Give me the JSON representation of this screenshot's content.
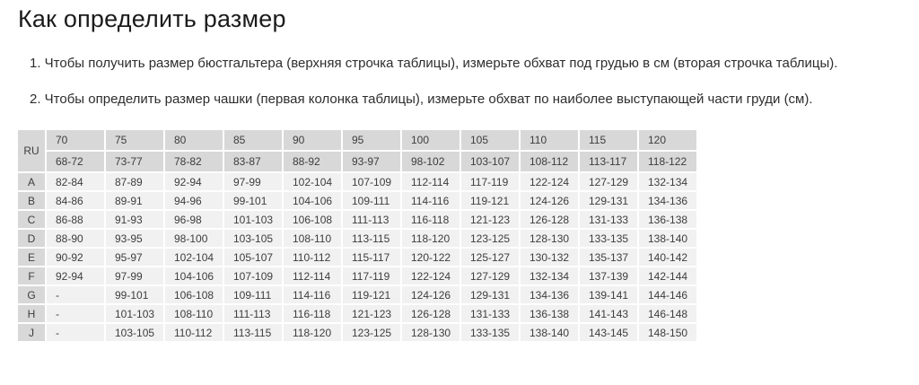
{
  "page": {
    "title": "Как определить размер",
    "instructions": [
      "1. Чтобы получить размер бюстгальтера (верхняя строчка таблицы), измерьте обхват под грудью в см (вторая строчка таблицы).",
      "2. Чтобы определить размер чашки (первая колонка таблицы), измерьте обхват по наиболее выступающей части груди (см)."
    ]
  },
  "size_table": {
    "corner_label": "RU",
    "band_sizes": [
      "70",
      "75",
      "80",
      "85",
      "90",
      "95",
      "100",
      "105",
      "110",
      "115",
      "120"
    ],
    "underbust_ranges": [
      "68-72",
      "73-77",
      "78-82",
      "83-87",
      "88-92",
      "93-97",
      "98-102",
      "103-107",
      "108-112",
      "113-117",
      "118-122"
    ],
    "cup_rows": [
      {
        "cup": "A",
        "values": [
          "82-84",
          "87-89",
          "92-94",
          "97-99",
          "102-104",
          "107-109",
          "112-114",
          "117-119",
          "122-124",
          "127-129",
          "132-134"
        ]
      },
      {
        "cup": "B",
        "values": [
          "84-86",
          "89-91",
          "94-96",
          "99-101",
          "104-106",
          "109-111",
          "114-116",
          "119-121",
          "124-126",
          "129-131",
          "134-136"
        ]
      },
      {
        "cup": "C",
        "values": [
          "86-88",
          "91-93",
          "96-98",
          "101-103",
          "106-108",
          "111-113",
          "116-118",
          "121-123",
          "126-128",
          "131-133",
          "136-138"
        ]
      },
      {
        "cup": "D",
        "values": [
          "88-90",
          "93-95",
          "98-100",
          "103-105",
          "108-110",
          "113-115",
          "118-120",
          "123-125",
          "128-130",
          "133-135",
          "138-140"
        ]
      },
      {
        "cup": "E",
        "values": [
          "90-92",
          "95-97",
          "102-104",
          "105-107",
          "110-112",
          "115-117",
          "120-122",
          "125-127",
          "130-132",
          "135-137",
          "140-142"
        ]
      },
      {
        "cup": "F",
        "values": [
          "92-94",
          "97-99",
          "104-106",
          "107-109",
          "112-114",
          "117-119",
          "122-124",
          "127-129",
          "132-134",
          "137-139",
          "142-144"
        ]
      },
      {
        "cup": "G",
        "values": [
          "-",
          "99-101",
          "106-108",
          "109-111",
          "114-116",
          "119-121",
          "124-126",
          "129-131",
          "134-136",
          "139-141",
          "144-146"
        ]
      },
      {
        "cup": "H",
        "values": [
          "-",
          "101-103",
          "108-110",
          "111-113",
          "116-118",
          "121-123",
          "126-128",
          "131-133",
          "136-138",
          "141-143",
          "146-148"
        ]
      },
      {
        "cup": "J",
        "values": [
          "-",
          "103-105",
          "110-112",
          "113-115",
          "118-120",
          "123-125",
          "128-130",
          "133-135",
          "138-140",
          "143-145",
          "148-150"
        ]
      }
    ]
  },
  "colors": {
    "header_bg": "#d8d8d8",
    "cell_bg": "#f1f1f2",
    "table_text": "#3d3d3d",
    "body_text": "#2d2d2d",
    "title_text": "#1b1b1b"
  }
}
